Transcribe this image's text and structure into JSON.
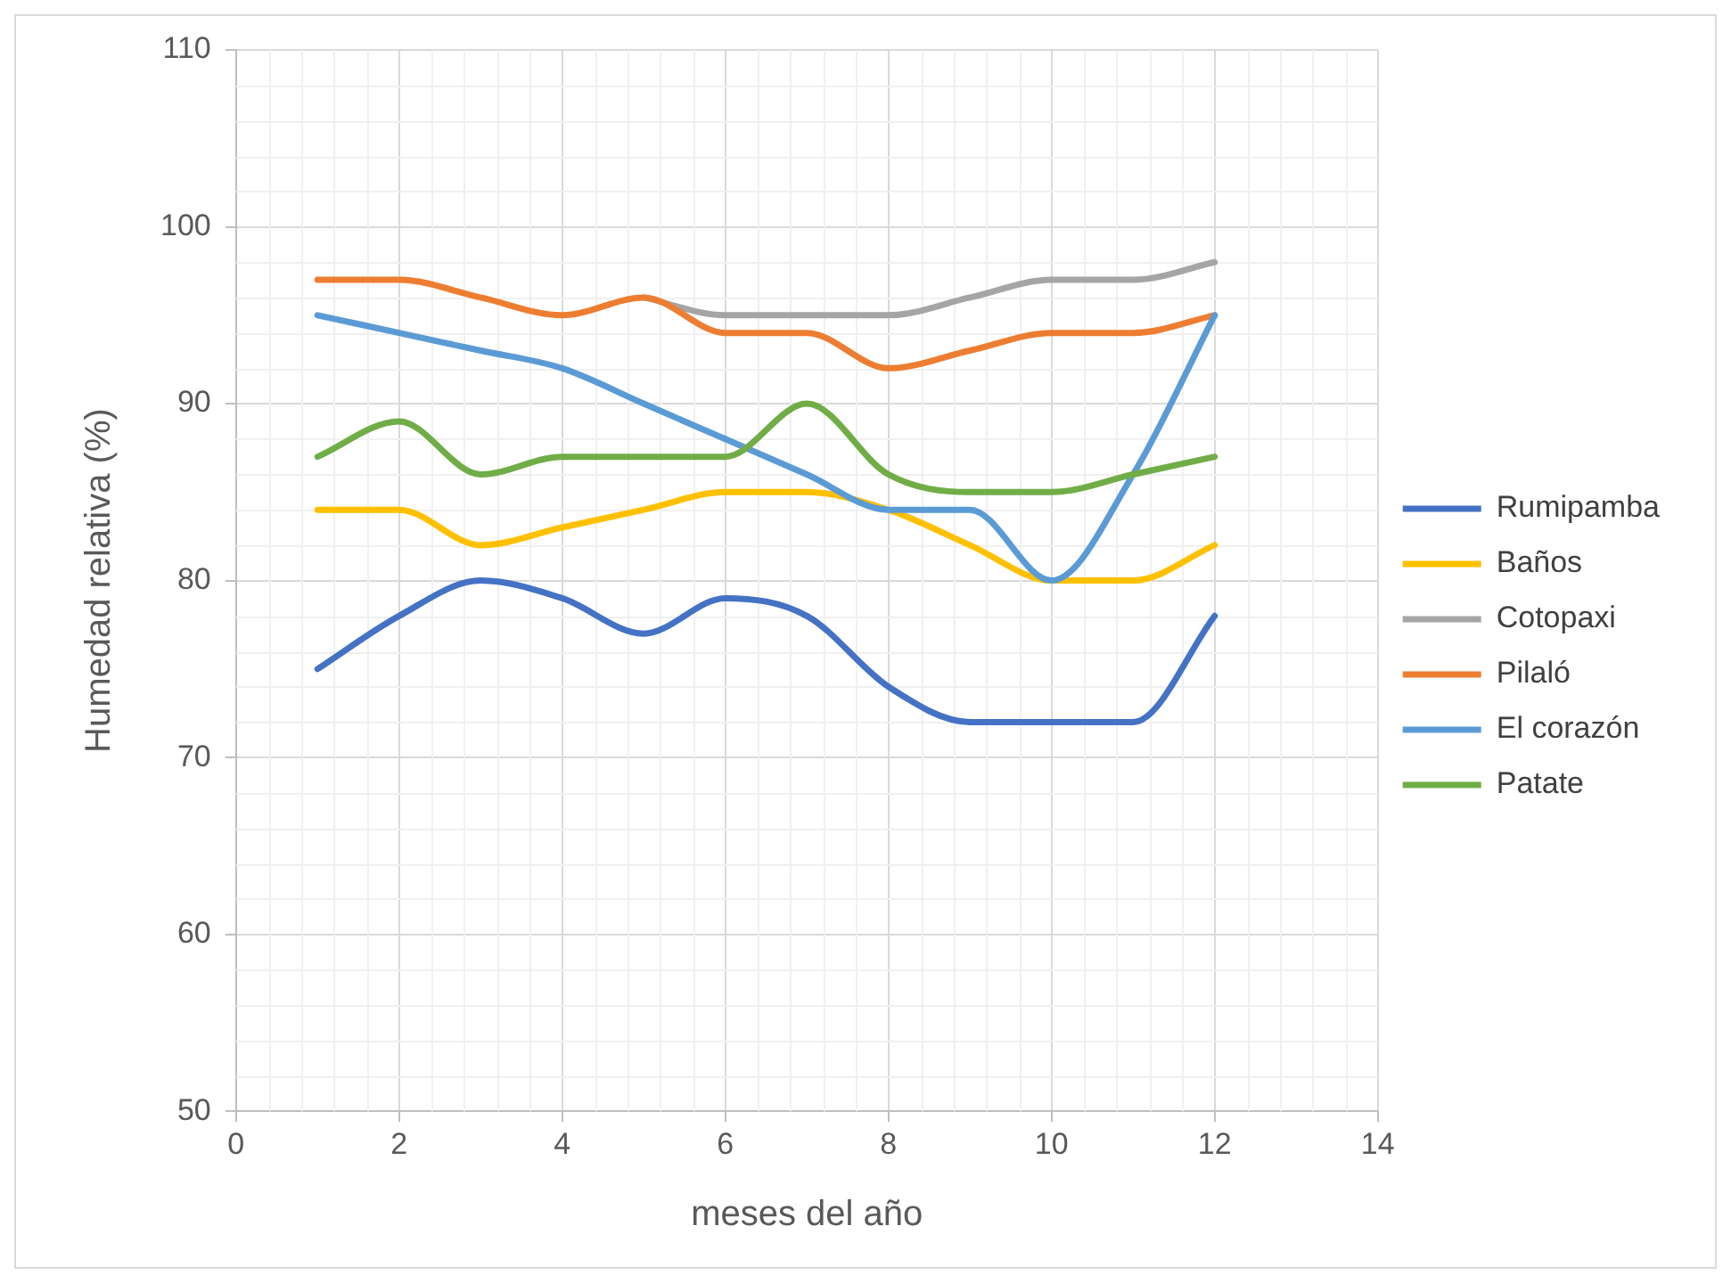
{
  "chart_data": {
    "type": "line",
    "xlabel": "meses del año",
    "ylabel": "Humedad relativa (%)",
    "x": [
      1,
      2,
      3,
      4,
      5,
      6,
      7,
      8,
      9,
      10,
      11,
      12
    ],
    "xlim": [
      0,
      14
    ],
    "xticks": [
      0,
      2,
      4,
      6,
      8,
      10,
      12,
      14
    ],
    "ylim": [
      50,
      110
    ],
    "yticks": [
      50,
      60,
      70,
      80,
      90,
      100,
      110
    ],
    "grid": true,
    "legend": "right",
    "marker": "none",
    "series": [
      {
        "name": "Rumipamba",
        "color": "#4472c4",
        "values": [
          75,
          78,
          80,
          79,
          77,
          79,
          78,
          74,
          72,
          72,
          72,
          78
        ]
      },
      {
        "name": "Baños",
        "color": "#ffc000",
        "values": [
          84,
          84,
          82,
          83,
          84,
          85,
          85,
          84,
          82,
          80,
          80,
          82
        ]
      },
      {
        "name": "Cotopaxi",
        "color": "#a5a5a5",
        "values": [
          null,
          null,
          null,
          null,
          96,
          95,
          95,
          95,
          96,
          97,
          97,
          98
        ]
      },
      {
        "name": "Pilaló",
        "color": "#ed7d31",
        "values": [
          97,
          97,
          96,
          95,
          96,
          94,
          94,
          92,
          93,
          94,
          94,
          95
        ]
      },
      {
        "name": "El corazón",
        "color": "#5b9bd5",
        "values": [
          95,
          94,
          93,
          92,
          90,
          88,
          86,
          84,
          84,
          80,
          86,
          95
        ]
      },
      {
        "name": "Patate",
        "color": "#70ad47",
        "values": [
          87,
          89,
          86,
          87,
          87,
          87,
          90,
          86,
          85,
          85,
          86,
          87
        ]
      }
    ]
  }
}
